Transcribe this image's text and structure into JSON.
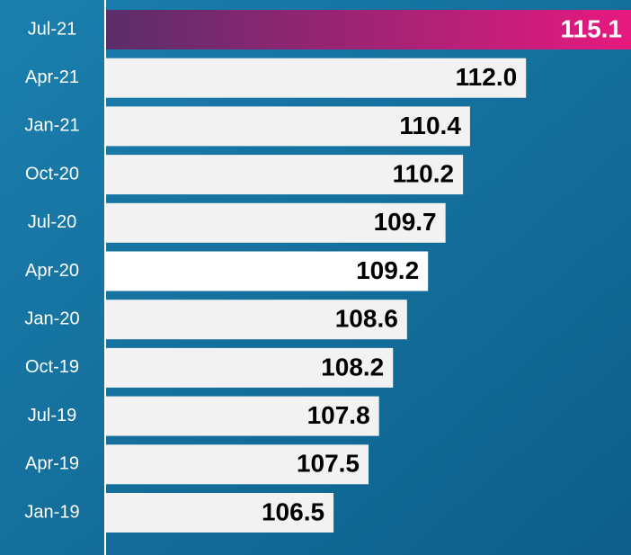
{
  "chart_data": {
    "type": "barh",
    "categories": [
      "Jul-21",
      "Apr-21",
      "Jan-21",
      "Oct-20",
      "Jul-20",
      "Apr-20",
      "Jan-20",
      "Oct-19",
      "Jul-19",
      "Apr-19",
      "Jan-19"
    ],
    "values": [
      115.1,
      112.0,
      110.4,
      110.2,
      109.7,
      109.2,
      108.6,
      108.2,
      107.8,
      107.5,
      106.5
    ],
    "value_labels": [
      "115.1",
      "112.0",
      "110.4",
      "110.2",
      "109.7",
      "109.2",
      "108.6",
      "108.2",
      "107.8",
      "107.5",
      "106.5"
    ],
    "colors": [
      "#e8197f",
      "#f2f2f2",
      "#f2f2f2",
      "#f2f2f2",
      "#f2f2f2",
      "#ffffff",
      "#f2f2f2",
      "#f2f2f2",
      "#f2f2f2",
      "#f2f2f2",
      "#f2f2f2"
    ],
    "xlim": [
      100,
      115
    ]
  }
}
